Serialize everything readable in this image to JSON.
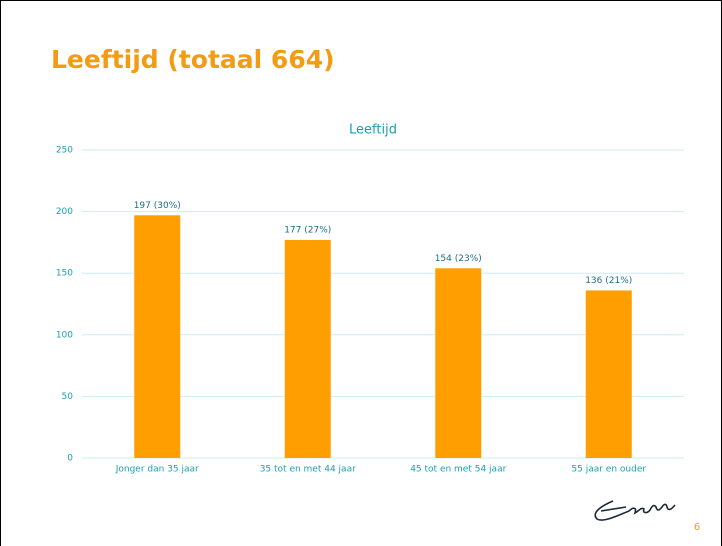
{
  "slide_title": "Leeftijd (totaal 664)",
  "page_number": "6",
  "chart_data": {
    "type": "bar",
    "title": "Leeftijd",
    "categories": [
      "Jonger dan 35 jaar",
      "35 tot en met 44 jaar",
      "45 tot en met 54 jaar",
      "55 jaar en ouder"
    ],
    "values": [
      197,
      177,
      154,
      136
    ],
    "value_labels": [
      "197 (30%)",
      "177 (27%)",
      "154 (23%)",
      "136 (21%)"
    ],
    "color": "#ff9e00",
    "ylim": [
      0,
      250
    ],
    "yticks": [
      0,
      50,
      100,
      150,
      200,
      250
    ],
    "grid": true
  }
}
